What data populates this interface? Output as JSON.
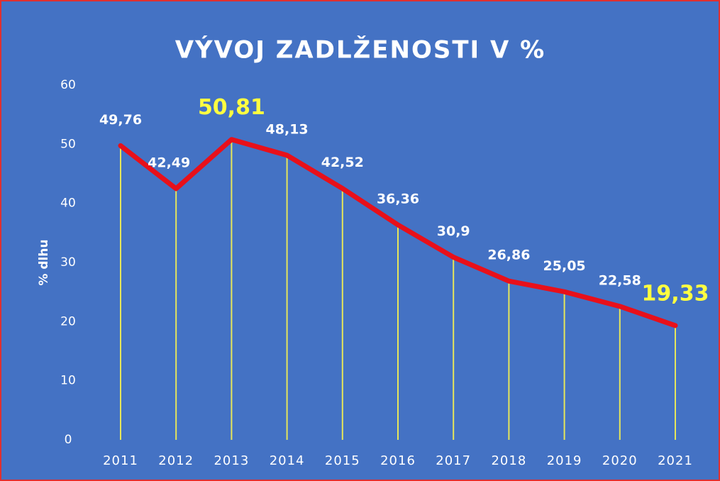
{
  "chart_data": {
    "type": "line",
    "title": "VÝVOJ ZADLŽENOSTI V %",
    "ylabel": "% dlhu",
    "categories": [
      "2011",
      "2012",
      "2013",
      "2014",
      "2015",
      "2016",
      "2017",
      "2018",
      "2019",
      "2020",
      "2021"
    ],
    "series": [
      {
        "name": "% dlhu",
        "color": "#e8101a",
        "drop_line_color": "#e6e65a",
        "values": [
          49.76,
          42.49,
          50.81,
          48.13,
          42.52,
          36.36,
          30.9,
          26.86,
          25.05,
          22.58,
          19.33
        ],
        "value_labels": [
          "49,76",
          "42,49",
          "50,81",
          "48,13",
          "42,52",
          "36,36",
          "30,9",
          "26,86",
          "25,05",
          "22,58",
          "19,33"
        ]
      }
    ],
    "highlight": [
      2,
      10
    ],
    "highlight_color": "#ffff40",
    "ylim": [
      0,
      60
    ],
    "yticks": [
      0,
      10,
      20,
      30,
      40,
      50,
      60
    ],
    "grid": false,
    "background": "#4472c4",
    "border_color": "#e03030"
  }
}
